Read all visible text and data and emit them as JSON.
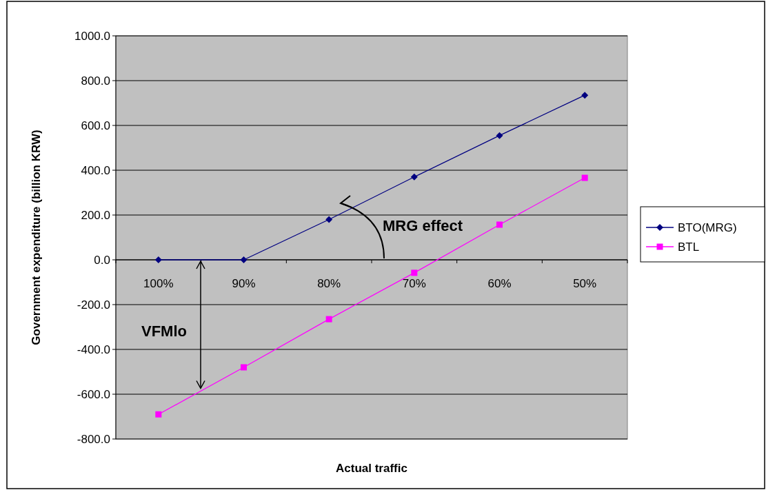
{
  "chart_data": {
    "type": "line",
    "xlabel": "Actual traffic",
    "ylabel": "Government expenditure (billion KRW)",
    "categories": [
      "100%",
      "90%",
      "80%",
      "70%",
      "60%",
      "50%"
    ],
    "series": [
      {
        "name": "BTO(MRG)",
        "color": "#000080",
        "marker": "diamond",
        "values": [
          0,
          0,
          180,
          370,
          555,
          735
        ]
      },
      {
        "name": "BTL",
        "color": "#ff00ff",
        "marker": "square",
        "values": [
          -690,
          -480,
          -265,
          -58,
          157,
          366
        ]
      }
    ],
    "ylim": [
      -800,
      1000
    ],
    "yticks": [
      {
        "value": -800,
        "label": "-800.0"
      },
      {
        "value": -600,
        "label": "-600.0"
      },
      {
        "value": -400,
        "label": "-400.0"
      },
      {
        "value": -200,
        "label": "-200.0"
      },
      {
        "value": 0,
        "label": "0.0"
      },
      {
        "value": 200,
        "label": "200.0"
      },
      {
        "value": 400,
        "label": "400.0"
      },
      {
        "value": 600,
        "label": "600.0"
      },
      {
        "value": 800,
        "label": "800.0"
      },
      {
        "value": 1000,
        "label": "1000.0"
      }
    ],
    "grid": "y",
    "legend": "right",
    "annotations": [
      "MRG effect",
      "VFMlo"
    ]
  }
}
